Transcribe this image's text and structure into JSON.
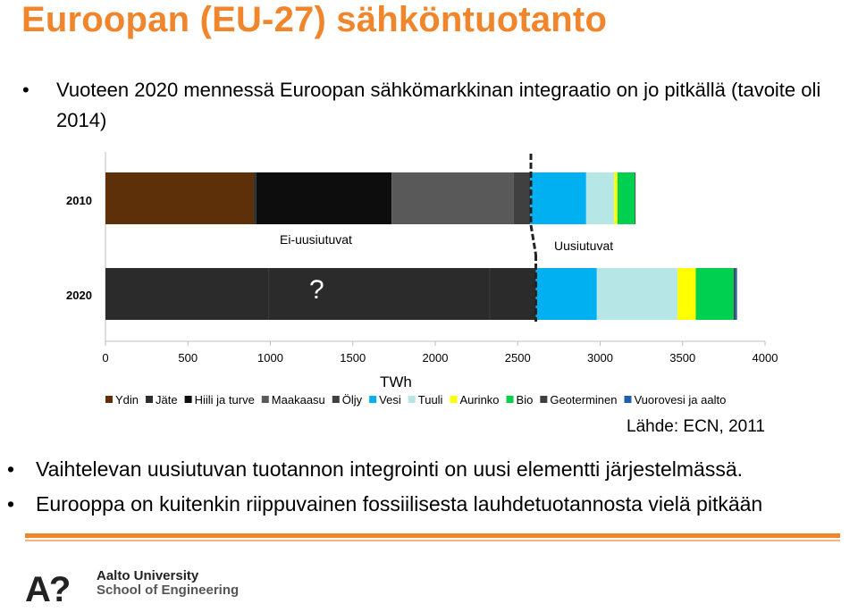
{
  "slide": {
    "title": "Euroopan (EU-27) sähköntuotanto",
    "bullet1": "Vuoteen 2020 mennessä Euroopan sähkömarkkinan integraatio on jo pitkällä (tavoite oli 2014)",
    "bullet2": "Vaihtelevan uusiutuvan tuotannon integrointi on uusi elementti järjestelmässä.",
    "bullet3": "Eurooppa on kuitenkin riippuvainen fossiilisesta lauhdetuotannosta vielä pitkään",
    "source": "Lähde: ECN, 2011",
    "logo_mark": "A?",
    "logo_line1": "Aalto University",
    "logo_line2": "School of Engineering"
  },
  "chart_data": {
    "type": "bar",
    "orientation": "horizontal",
    "stacked": true,
    "categories": [
      "2010",
      "2020"
    ],
    "xlabel": "TWh",
    "xlim": [
      0,
      4000
    ],
    "xticks": [
      0,
      500,
      1000,
      1500,
      2000,
      2500,
      3000,
      3500,
      4000
    ],
    "series": [
      {
        "name": "Ydin",
        "color": "#5e3009",
        "values": [
          900,
          0
        ]
      },
      {
        "name": "Jäte",
        "color": "#2e2e2e",
        "values": [
          15,
          0
        ]
      },
      {
        "name": "Hiili ja turve",
        "color": "#0d0d0d",
        "values": [
          820,
          0
        ]
      },
      {
        "name": "Maakaasu",
        "color": "#595959",
        "values": [
          740,
          0
        ]
      },
      {
        "name": "Öljy",
        "color": "#404040",
        "values": [
          100,
          0
        ]
      },
      {
        "name": "Vesi",
        "color": "#00b0f0",
        "values": [
          340,
          370
        ]
      },
      {
        "name": "Tuuli",
        "color": "#b7e6e6",
        "values": [
          170,
          490
        ]
      },
      {
        "name": "Aurinko",
        "color": "#ffff00",
        "values": [
          20,
          110
        ]
      },
      {
        "name": "Bio",
        "color": "#00d050",
        "values": [
          105,
          230
        ]
      },
      {
        "name": "Geoterminen",
        "color": "#404040",
        "values": [
          5,
          10
        ]
      },
      {
        "name": "Vuorovesi ja aalto",
        "color": "#1f5fb0",
        "values": [
          0,
          10
        ]
      }
    ],
    "unknown_nonrenewable_2020": {
      "label": "?",
      "color": "#2b2b2b",
      "value": 2610
    },
    "annotations": [
      {
        "text": "Ei-uusiutuvat"
      },
      {
        "text": "Uusiutuvat"
      }
    ],
    "divider_values": [
      2580,
      2610
    ],
    "legend_position": "bottom",
    "grid": false
  }
}
